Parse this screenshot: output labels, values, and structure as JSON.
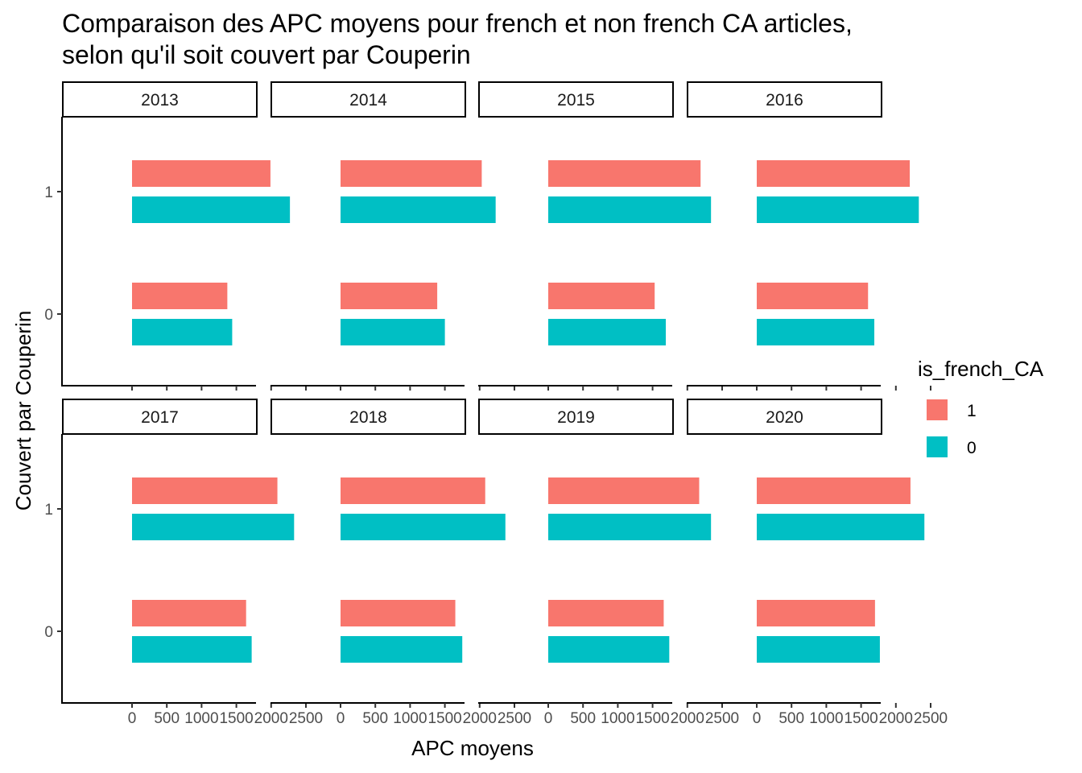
{
  "chart_data": {
    "type": "bar",
    "orientation": "horizontal",
    "title_lines": [
      "Comparaison des APC moyens pour french et non french CA articles,",
      "selon qu'il soit couvert par Couperin"
    ],
    "xlabel": "APC moyens",
    "ylabel": "Couvert par Couperin",
    "xlim": [
      0,
      2500
    ],
    "x_ticks": [
      "0",
      "500",
      "1000",
      "1500",
      "2000",
      "2500"
    ],
    "categories": [
      "1",
      "0"
    ],
    "legend": {
      "title": "is_french_CA",
      "position": "right",
      "entries": [
        {
          "label": "1",
          "color": "#F8766D"
        },
        {
          "label": "0",
          "color": "#00BFC4"
        }
      ]
    },
    "facets": [
      {
        "label": "2013",
        "values": {
          "1": {
            "1": 1990,
            "0": 2270
          },
          "0": {
            "1": 1370,
            "0": 1440
          }
        }
      },
      {
        "label": "2014",
        "values": {
          "1": {
            "1": 2030,
            "0": 2230
          },
          "0": {
            "1": 1390,
            "0": 1500
          }
        }
      },
      {
        "label": "2015",
        "values": {
          "1": {
            "1": 2190,
            "0": 2340
          },
          "0": {
            "1": 1530,
            "0": 1690
          }
        }
      },
      {
        "label": "2016",
        "values": {
          "1": {
            "1": 2200,
            "0": 2330
          },
          "0": {
            "1": 1600,
            "0": 1690
          }
        }
      },
      {
        "label": "2017",
        "values": {
          "1": {
            "1": 2090,
            "0": 2330
          },
          "0": {
            "1": 1640,
            "0": 1720
          }
        }
      },
      {
        "label": "2018",
        "values": {
          "1": {
            "1": 2080,
            "0": 2370
          },
          "0": {
            "1": 1650,
            "0": 1750
          }
        }
      },
      {
        "label": "2019",
        "values": {
          "1": {
            "1": 2170,
            "0": 2340
          },
          "0": {
            "1": 1660,
            "0": 1740
          }
        }
      },
      {
        "label": "2020",
        "values": {
          "1": {
            "1": 2210,
            "0": 2410
          },
          "0": {
            "1": 1700,
            "0": 1770
          }
        }
      }
    ]
  }
}
